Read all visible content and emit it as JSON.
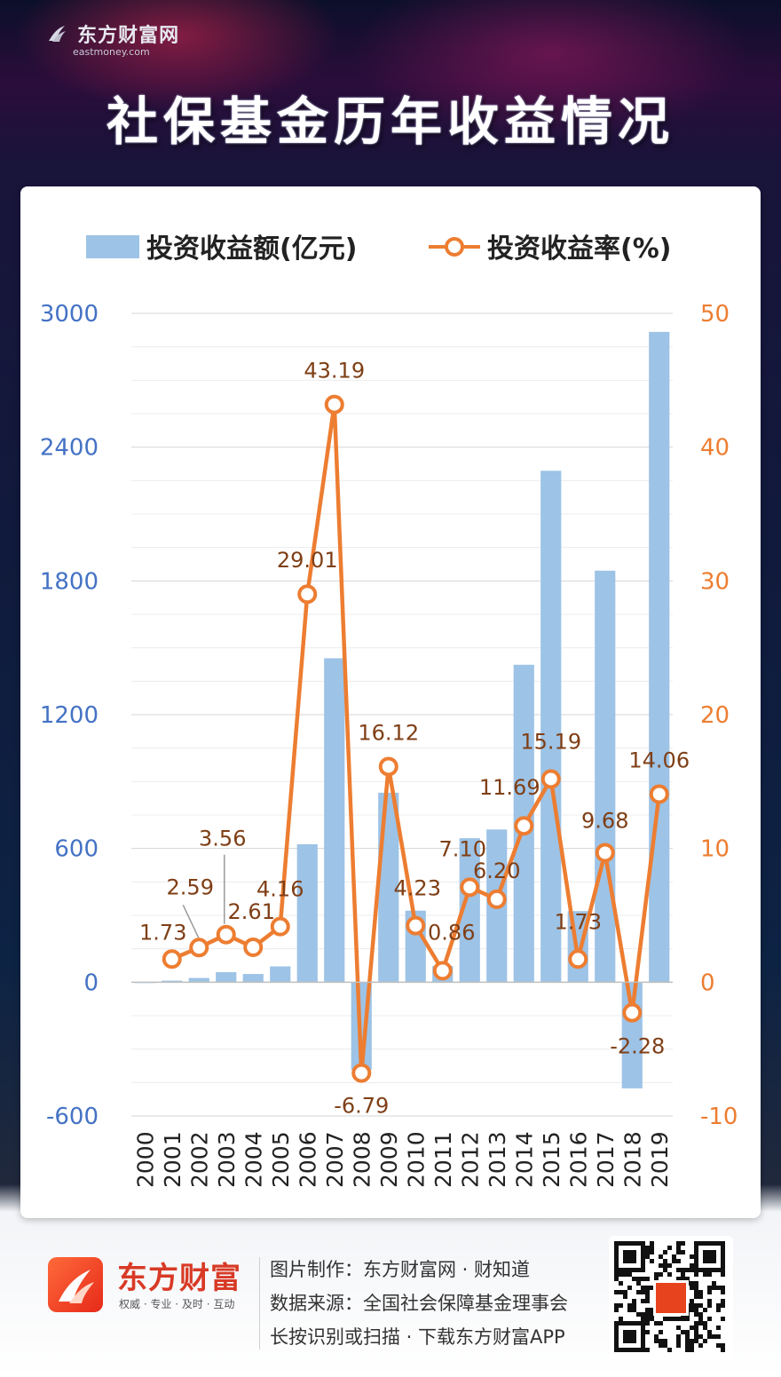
{
  "header": {
    "brand_name": "东方财富网",
    "brand_url": "eastmoney.com",
    "title": "社保基金历年收益情况"
  },
  "colors": {
    "bar": "#9dc3e6",
    "line": "#ed7d31",
    "left_axis": "#4472c4",
    "right_axis": "#ed7d31",
    "label": "#7f3f16"
  },
  "chart_data": {
    "type": "bar",
    "categories": [
      "2000",
      "2001",
      "2002",
      "2003",
      "2004",
      "2005",
      "2006",
      "2007",
      "2008",
      "2009",
      "2010",
      "2011",
      "2012",
      "2013",
      "2014",
      "2015",
      "2016",
      "2017",
      "2018",
      "2019"
    ],
    "series": [
      {
        "name": "投资收益额(亿元)",
        "type": "bar",
        "axis": "left",
        "values": [
          0.2,
          7,
          19,
          45,
          37,
          71,
          619,
          1453,
          -393,
          850,
          321,
          73,
          646,
          685,
          1424,
          2294,
          319,
          1846,
          -476,
          2917
        ]
      },
      {
        "name": "投资收益率(%)",
        "type": "line",
        "axis": "right",
        "values": [
          null,
          1.73,
          2.59,
          3.56,
          2.61,
          4.16,
          29.01,
          43.19,
          -6.79,
          16.12,
          4.23,
          0.86,
          7.1,
          6.2,
          11.69,
          15.19,
          1.73,
          9.68,
          -2.28,
          14.06
        ],
        "labels": [
          null,
          "1.73",
          "2.59",
          "3.56",
          "2.61",
          "4.16",
          "29.01",
          "43.19",
          "-6.79",
          "16.12",
          "4.23",
          "0.86",
          "7.10",
          "6.20",
          "11.69",
          "15.19",
          "1.73",
          "9.68",
          "-2.28",
          "14.06"
        ]
      }
    ],
    "y_left": {
      "min": -600,
      "max": 3000,
      "ticks": [
        "-600",
        "0",
        "600",
        "1200",
        "1800",
        "2400",
        "3000"
      ]
    },
    "y_right": {
      "min": -10,
      "max": 50,
      "ticks": [
        "-10",
        "0",
        "10",
        "20",
        "30",
        "40",
        "50"
      ]
    },
    "grid": true,
    "legend": "top"
  },
  "footer": {
    "logo_name": "东方财富",
    "slogan": "权威 · 专业 · 及时 · 互动",
    "credit_1": "图片制作：东方财富网 · 财知道",
    "credit_2": "数据来源：全国社会保障基金理事会",
    "credit_3": "长按识别或扫描 · 下载东方财富APP"
  }
}
